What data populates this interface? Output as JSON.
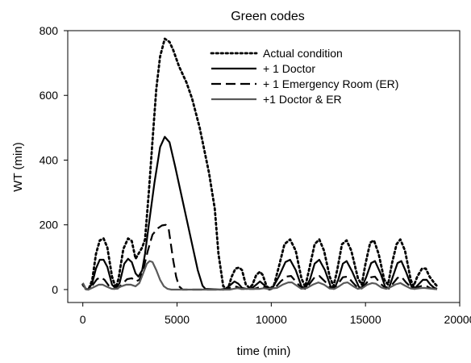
{
  "chart_data": {
    "type": "line",
    "title": "Green codes",
    "xlabel": "time (min)",
    "ylabel": "WT  (min)",
    "xlim": [
      -800,
      20000
    ],
    "ylim": [
      -40,
      800
    ],
    "xticks": [
      0,
      5000,
      10000,
      15000,
      20000
    ],
    "yticks": [
      0,
      200,
      400,
      600,
      800
    ],
    "xtick_labels": [
      "0",
      "5000",
      "10000",
      "15000",
      "20000"
    ],
    "ytick_labels": [
      "0",
      "200",
      "400",
      "600",
      "800"
    ],
    "grid": false,
    "legend_position": "top-right",
    "series": [
      {
        "name": "Actual condition",
        "style": "dotted",
        "color": "#000000",
        "points": [
          [
            0,
            15
          ],
          [
            150,
            2
          ],
          [
            300,
            0
          ],
          [
            500,
            30
          ],
          [
            700,
            110
          ],
          [
            900,
            152
          ],
          [
            1100,
            158
          ],
          [
            1300,
            130
          ],
          [
            1550,
            40
          ],
          [
            1750,
            5
          ],
          [
            1900,
            35
          ],
          [
            2150,
            125
          ],
          [
            2400,
            158
          ],
          [
            2600,
            150
          ],
          [
            2800,
            95
          ],
          [
            2950,
            110
          ],
          [
            3150,
            130
          ],
          [
            3300,
            155
          ],
          [
            3500,
            300
          ],
          [
            3700,
            460
          ],
          [
            3900,
            620
          ],
          [
            4100,
            720
          ],
          [
            4350,
            775
          ],
          [
            4600,
            765
          ],
          [
            4800,
            740
          ],
          [
            5100,
            690
          ],
          [
            5500,
            640
          ],
          [
            5800,
            590
          ],
          [
            6200,
            500
          ],
          [
            6700,
            360
          ],
          [
            7000,
            250
          ],
          [
            7200,
            110
          ],
          [
            7450,
            10
          ],
          [
            7700,
            2
          ],
          [
            7900,
            40
          ],
          [
            8100,
            65
          ],
          [
            8300,
            68
          ],
          [
            8450,
            60
          ],
          [
            8650,
            15
          ],
          [
            8850,
            5
          ],
          [
            9000,
            15
          ],
          [
            9200,
            45
          ],
          [
            9400,
            55
          ],
          [
            9550,
            45
          ],
          [
            9750,
            10
          ],
          [
            9950,
            2
          ],
          [
            10150,
            15
          ],
          [
            10400,
            70
          ],
          [
            10700,
            140
          ],
          [
            11000,
            155
          ],
          [
            11300,
            120
          ],
          [
            11600,
            35
          ],
          [
            11800,
            8
          ],
          [
            12000,
            60
          ],
          [
            12300,
            140
          ],
          [
            12550,
            155
          ],
          [
            12800,
            120
          ],
          [
            13100,
            40
          ],
          [
            13300,
            10
          ],
          [
            13500,
            60
          ],
          [
            13750,
            140
          ],
          [
            14000,
            152
          ],
          [
            14250,
            120
          ],
          [
            14600,
            35
          ],
          [
            14800,
            15
          ],
          [
            15000,
            80
          ],
          [
            15250,
            145
          ],
          [
            15450,
            152
          ],
          [
            15700,
            110
          ],
          [
            16000,
            30
          ],
          [
            16200,
            15
          ],
          [
            16400,
            80
          ],
          [
            16650,
            140
          ],
          [
            16850,
            155
          ],
          [
            17100,
            120
          ],
          [
            17400,
            30
          ],
          [
            17550,
            10
          ],
          [
            17750,
            40
          ],
          [
            18000,
            65
          ],
          [
            18200,
            65
          ],
          [
            18400,
            40
          ],
          [
            18650,
            20
          ],
          [
            18800,
            10
          ]
        ]
      },
      {
        "name": "+ 1 Doctor",
        "style": "solid",
        "color": "#000000",
        "points": [
          [
            0,
            20
          ],
          [
            150,
            3
          ],
          [
            300,
            0
          ],
          [
            500,
            20
          ],
          [
            700,
            65
          ],
          [
            900,
            92
          ],
          [
            1100,
            92
          ],
          [
            1300,
            70
          ],
          [
            1550,
            15
          ],
          [
            1750,
            3
          ],
          [
            1950,
            20
          ],
          [
            2200,
            80
          ],
          [
            2400,
            95
          ],
          [
            2600,
            85
          ],
          [
            2800,
            50
          ],
          [
            2950,
            40
          ],
          [
            3150,
            60
          ],
          [
            3300,
            110
          ],
          [
            3500,
            200
          ],
          [
            3800,
            330
          ],
          [
            4100,
            440
          ],
          [
            4350,
            472
          ],
          [
            4600,
            455
          ],
          [
            4900,
            380
          ],
          [
            5200,
            300
          ],
          [
            5500,
            220
          ],
          [
            5800,
            140
          ],
          [
            6100,
            60
          ],
          [
            6350,
            12
          ],
          [
            6500,
            2
          ],
          [
            7300,
            0
          ],
          [
            7600,
            3
          ],
          [
            7850,
            15
          ],
          [
            8050,
            25
          ],
          [
            8250,
            18
          ],
          [
            8450,
            5
          ],
          [
            8700,
            2
          ],
          [
            9000,
            5
          ],
          [
            9200,
            15
          ],
          [
            9400,
            25
          ],
          [
            9600,
            15
          ],
          [
            9800,
            3
          ],
          [
            10100,
            8
          ],
          [
            10400,
            40
          ],
          [
            10750,
            85
          ],
          [
            11000,
            92
          ],
          [
            11300,
            60
          ],
          [
            11600,
            10
          ],
          [
            11800,
            3
          ],
          [
            12050,
            30
          ],
          [
            12300,
            80
          ],
          [
            12550,
            92
          ],
          [
            12850,
            60
          ],
          [
            13150,
            10
          ],
          [
            13350,
            3
          ],
          [
            13550,
            30
          ],
          [
            13800,
            80
          ],
          [
            14000,
            88
          ],
          [
            14300,
            55
          ],
          [
            14650,
            8
          ],
          [
            14800,
            5
          ],
          [
            15050,
            40
          ],
          [
            15300,
            82
          ],
          [
            15500,
            88
          ],
          [
            15800,
            50
          ],
          [
            16050,
            8
          ],
          [
            16250,
            5
          ],
          [
            16450,
            40
          ],
          [
            16700,
            82
          ],
          [
            16900,
            88
          ],
          [
            17150,
            55
          ],
          [
            17450,
            8
          ],
          [
            17600,
            3
          ],
          [
            17800,
            15
          ],
          [
            18050,
            30
          ],
          [
            18250,
            30
          ],
          [
            18450,
            15
          ],
          [
            18650,
            5
          ],
          [
            18800,
            2
          ]
        ]
      },
      {
        "name": "+ 1 Emergency Room (ER)",
        "style": "dashed",
        "color": "#000000",
        "points": [
          [
            0,
            18
          ],
          [
            150,
            2
          ],
          [
            300,
            0
          ],
          [
            500,
            12
          ],
          [
            750,
            32
          ],
          [
            950,
            38
          ],
          [
            1150,
            30
          ],
          [
            1400,
            10
          ],
          [
            1650,
            2
          ],
          [
            1850,
            3
          ],
          [
            2100,
            18
          ],
          [
            2350,
            32
          ],
          [
            2600,
            35
          ],
          [
            2800,
            25
          ],
          [
            3000,
            30
          ],
          [
            3200,
            60
          ],
          [
            3450,
            120
          ],
          [
            3700,
            170
          ],
          [
            4000,
            190
          ],
          [
            4200,
            198
          ],
          [
            4400,
            200
          ],
          [
            4550,
            190
          ],
          [
            4650,
            150
          ],
          [
            4800,
            90
          ],
          [
            4950,
            40
          ],
          [
            5100,
            10
          ],
          [
            5300,
            0
          ],
          [
            7500,
            0
          ],
          [
            7800,
            5
          ],
          [
            8000,
            10
          ],
          [
            8200,
            8
          ],
          [
            8400,
            2
          ],
          [
            9100,
            2
          ],
          [
            9300,
            6
          ],
          [
            9500,
            10
          ],
          [
            9700,
            5
          ],
          [
            9900,
            0
          ],
          [
            10200,
            5
          ],
          [
            10500,
            25
          ],
          [
            10800,
            40
          ],
          [
            11050,
            42
          ],
          [
            11300,
            25
          ],
          [
            11600,
            5
          ],
          [
            11800,
            2
          ],
          [
            12000,
            15
          ],
          [
            12300,
            38
          ],
          [
            12550,
            42
          ],
          [
            12850,
            25
          ],
          [
            13150,
            5
          ],
          [
            13300,
            2
          ],
          [
            13550,
            18
          ],
          [
            13800,
            38
          ],
          [
            14050,
            40
          ],
          [
            14350,
            20
          ],
          [
            14600,
            5
          ],
          [
            14800,
            3
          ],
          [
            15050,
            20
          ],
          [
            15300,
            38
          ],
          [
            15500,
            40
          ],
          [
            15800,
            18
          ],
          [
            16050,
            5
          ],
          [
            16250,
            3
          ],
          [
            16450,
            18
          ],
          [
            16700,
            36
          ],
          [
            16900,
            40
          ],
          [
            17150,
            22
          ],
          [
            17450,
            5
          ],
          [
            17600,
            2
          ],
          [
            17800,
            8
          ],
          [
            18050,
            12
          ],
          [
            18250,
            10
          ],
          [
            18450,
            4
          ],
          [
            18800,
            1
          ]
        ]
      },
      {
        "name": "+1 Doctor & ER",
        "style": "solid",
        "color": "#595959",
        "points": [
          [
            0,
            20
          ],
          [
            150,
            2
          ],
          [
            300,
            0
          ],
          [
            600,
            8
          ],
          [
            850,
            15
          ],
          [
            1050,
            15
          ],
          [
            1300,
            8
          ],
          [
            1550,
            2
          ],
          [
            1800,
            3
          ],
          [
            2050,
            10
          ],
          [
            2300,
            15
          ],
          [
            2550,
            15
          ],
          [
            2800,
            10
          ],
          [
            3000,
            20
          ],
          [
            3200,
            50
          ],
          [
            3400,
            80
          ],
          [
            3550,
            88
          ],
          [
            3700,
            85
          ],
          [
            3900,
            60
          ],
          [
            4100,
            30
          ],
          [
            4300,
            10
          ],
          [
            4500,
            2
          ],
          [
            4700,
            0
          ],
          [
            7800,
            0
          ],
          [
            8000,
            2
          ],
          [
            8200,
            4
          ],
          [
            8400,
            2
          ],
          [
            9400,
            2
          ],
          [
            9600,
            4
          ],
          [
            9800,
            2
          ],
          [
            10300,
            5
          ],
          [
            10600,
            15
          ],
          [
            10900,
            22
          ],
          [
            11100,
            22
          ],
          [
            11350,
            12
          ],
          [
            11600,
            2
          ],
          [
            11900,
            5
          ],
          [
            12200,
            15
          ],
          [
            12500,
            22
          ],
          [
            12800,
            15
          ],
          [
            13100,
            3
          ],
          [
            13350,
            2
          ],
          [
            13600,
            10
          ],
          [
            13850,
            20
          ],
          [
            14050,
            22
          ],
          [
            14350,
            10
          ],
          [
            14600,
            2
          ],
          [
            14850,
            5
          ],
          [
            15100,
            15
          ],
          [
            15350,
            20
          ],
          [
            15550,
            18
          ],
          [
            15850,
            6
          ],
          [
            16100,
            2
          ],
          [
            16350,
            8
          ],
          [
            16600,
            16
          ],
          [
            16850,
            20
          ],
          [
            17100,
            12
          ],
          [
            17400,
            3
          ],
          [
            17600,
            2
          ],
          [
            17900,
            4
          ],
          [
            18100,
            5
          ],
          [
            18400,
            3
          ],
          [
            18800,
            1
          ]
        ]
      }
    ]
  }
}
